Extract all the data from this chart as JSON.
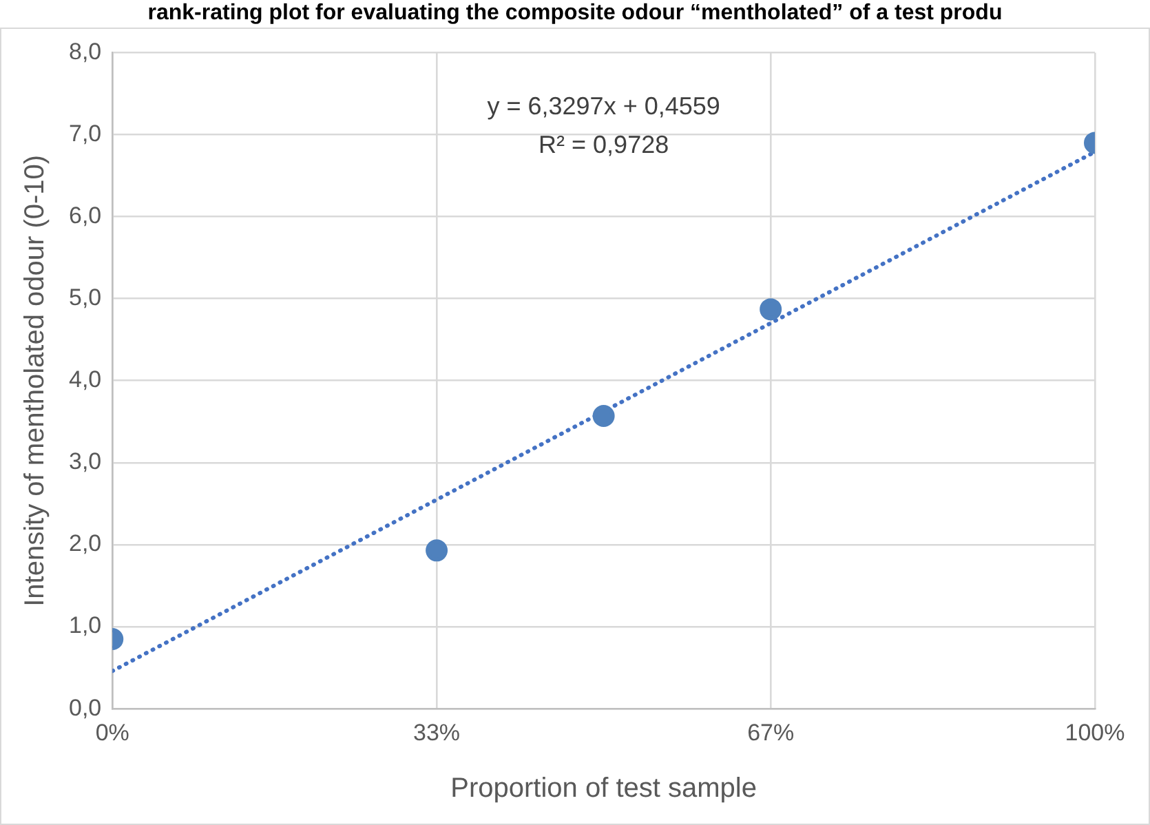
{
  "chart_data": {
    "type": "scatter",
    "title": "rank-rating plot for evaluating the composite odour “mentholated” of a test produ",
    "xlabel": "Proportion of test sample",
    "ylabel": "Intensity of mentholated odour (0-10)",
    "annotations": [
      "y = 6,3297x + 0,4559",
      "R² = 0,9728"
    ],
    "series": [
      {
        "type": "scatter",
        "color": "#4f81bd",
        "x": [
          0,
          0.33,
          0.5,
          0.67,
          1
        ],
        "values": [
          0.85,
          1.93,
          3.57,
          4.87,
          6.9
        ],
        "marker": "circle"
      },
      {
        "type": "line",
        "color": "#4472c4",
        "x": [
          0,
          1
        ],
        "values": [
          0.46,
          6.79
        ],
        "marker": "none",
        "line_style": "dotted"
      }
    ],
    "xlim": [
      0,
      1
    ],
    "xticks": [
      {
        "value": 0,
        "label": "0%"
      },
      {
        "value": 0.33,
        "label": "33%"
      },
      {
        "value": 0.67,
        "label": "67%"
      },
      {
        "value": 1,
        "label": "100%"
      }
    ],
    "ylim": [
      0,
      8
    ],
    "yticks": [
      {
        "value": 0,
        "label": "0,0"
      },
      {
        "value": 1,
        "label": "1,0"
      },
      {
        "value": 2,
        "label": "2,0"
      },
      {
        "value": 3,
        "label": "3,0"
      },
      {
        "value": 4,
        "label": "4,0"
      },
      {
        "value": 5,
        "label": "5,0"
      },
      {
        "value": 6,
        "label": "6,0"
      },
      {
        "value": 7,
        "label": "7,0"
      },
      {
        "value": 8,
        "label": "8,0"
      }
    ],
    "grid": true,
    "legend": false
  }
}
